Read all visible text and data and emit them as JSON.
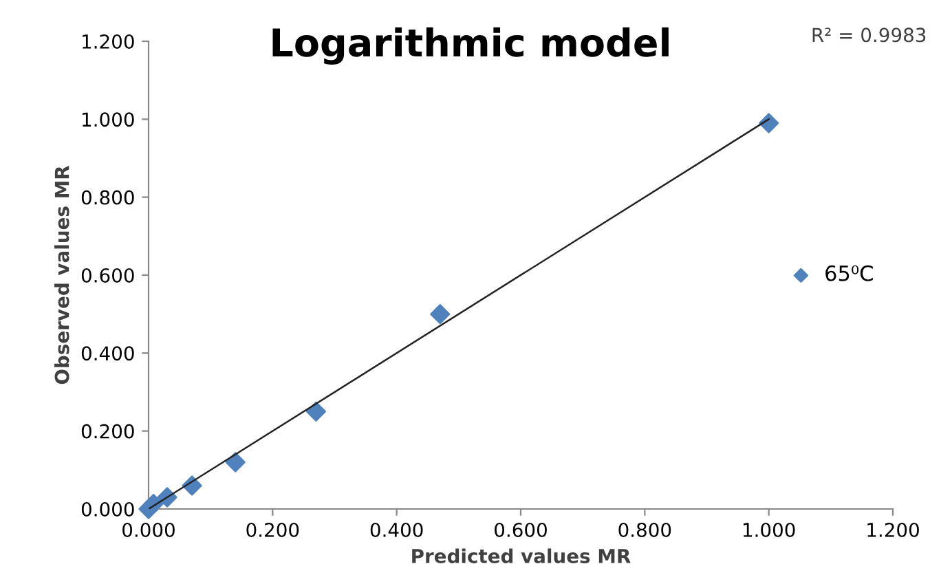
{
  "chart_data": {
    "type": "scatter",
    "title": "Logarithmic model",
    "xlabel": "Predicted values MR",
    "ylabel": "Observed values MR",
    "x": [
      0.0,
      0.008,
      0.03,
      0.07,
      0.14,
      0.27,
      0.47,
      1.0
    ],
    "series": [
      {
        "name": "65⁰C",
        "color": "#4f81bd",
        "values": [
          0.0,
          0.013,
          0.03,
          0.06,
          0.12,
          0.25,
          0.5,
          0.99
        ],
        "marker": "diamond"
      },
      {
        "type": "line",
        "color": "#222222",
        "x": [
          0.0,
          1.0
        ],
        "values": [
          0.0,
          1.0
        ],
        "marker": "none"
      }
    ],
    "annotations": [
      "R² = 0.9983"
    ],
    "xlim": [
      0,
      1.2
    ],
    "ylim": [
      0,
      1.2
    ],
    "xticks": [
      {
        "value": 0,
        "label": "0.000"
      },
      {
        "value": 0.2,
        "label": "0.200"
      },
      {
        "value": 0.4,
        "label": "0.400"
      },
      {
        "value": 0.6,
        "label": "0.600"
      },
      {
        "value": 0.8,
        "label": "0.800"
      },
      {
        "value": 1.0,
        "label": "1.000"
      },
      {
        "value": 1.2,
        "label": "1.200"
      }
    ],
    "yticks": [
      {
        "value": 0,
        "label": "0.000"
      },
      {
        "value": 0.2,
        "label": "0.200"
      },
      {
        "value": 0.4,
        "label": "0.400"
      },
      {
        "value": 0.6,
        "label": "0.600"
      },
      {
        "value": 0.8,
        "label": "0.800"
      },
      {
        "value": 1.0,
        "label": "1.000"
      },
      {
        "value": 1.2,
        "label": "1.200"
      }
    ],
    "grid": false,
    "legend": "right"
  }
}
